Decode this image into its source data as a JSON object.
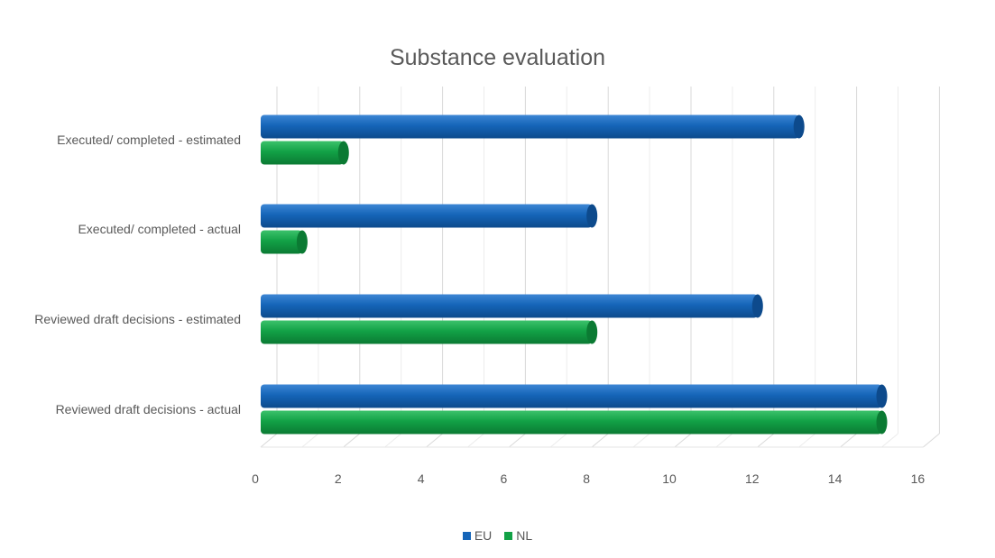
{
  "chart_data": {
    "type": "bar",
    "orientation": "horizontal",
    "title": "Substance evaluation",
    "categories": [
      "Reviewed draft decisions - actual",
      "Reviewed draft decisions - estimated",
      "Executed/ completed - actual",
      "Executed/ completed - estimated"
    ],
    "series": [
      {
        "name": "EU",
        "values": [
          15,
          12,
          8,
          13
        ],
        "color": "#1565B8"
      },
      {
        "name": "NL",
        "values": [
          15,
          8,
          1,
          2
        ],
        "color": "#12A146"
      }
    ],
    "xlim": [
      0,
      16
    ],
    "xticks": [
      "0",
      "2",
      "4",
      "6",
      "8",
      "10",
      "12",
      "14",
      "16"
    ],
    "xlabel": "",
    "ylabel": "",
    "grid": true,
    "legend_position": "bottom"
  }
}
